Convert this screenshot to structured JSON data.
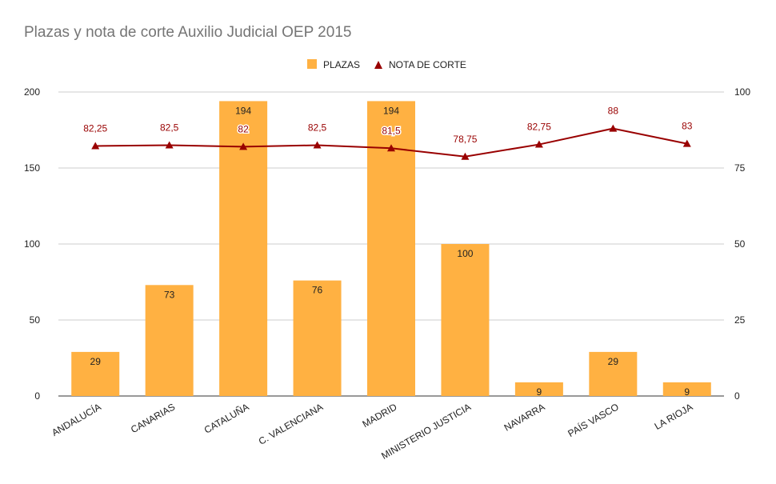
{
  "chart_data": {
    "type": "bar",
    "title": "Plazas y nota de corte Auxilio Judicial OEP 2015",
    "categories": [
      "ANDALUCÍA",
      "CANARIAS",
      "CATALUÑA",
      "C. VALENCIANA",
      "MADRID",
      "MINISTERIO JUSTICIA",
      "NAVARRA",
      "PAÍS VASCO",
      "LA RIOJA"
    ],
    "series": [
      {
        "name": "PLAZAS",
        "type": "bar",
        "axis": "left",
        "color": "#ffb142",
        "values": [
          29,
          73,
          194,
          76,
          194,
          100,
          9,
          29,
          9
        ],
        "labels": [
          "29",
          "73",
          "194",
          "76",
          "194",
          "100",
          "9",
          "29",
          "9"
        ]
      },
      {
        "name": "NOTA DE CORTE",
        "type": "line",
        "axis": "right",
        "color": "#990000",
        "values": [
          82.25,
          82.5,
          82,
          82.5,
          81.5,
          78.75,
          82.75,
          88,
          83
        ],
        "labels": [
          "82,25",
          "82,5",
          "82",
          "82,5",
          "81,5",
          "78,75",
          "82,75",
          "88",
          "83"
        ]
      }
    ],
    "y_left": {
      "min": 0,
      "max": 200,
      "ticks": [
        "0",
        "50",
        "100",
        "150",
        "200"
      ]
    },
    "y_right": {
      "min": 0,
      "max": 100,
      "ticks": [
        "0",
        "25",
        "50",
        "75",
        "100"
      ]
    },
    "grid": true,
    "legend": "top-center"
  },
  "colors": {
    "bar": "#ffb142",
    "line": "#990000",
    "grid": "#cccccc",
    "text": "#222222",
    "title": "#757575"
  }
}
